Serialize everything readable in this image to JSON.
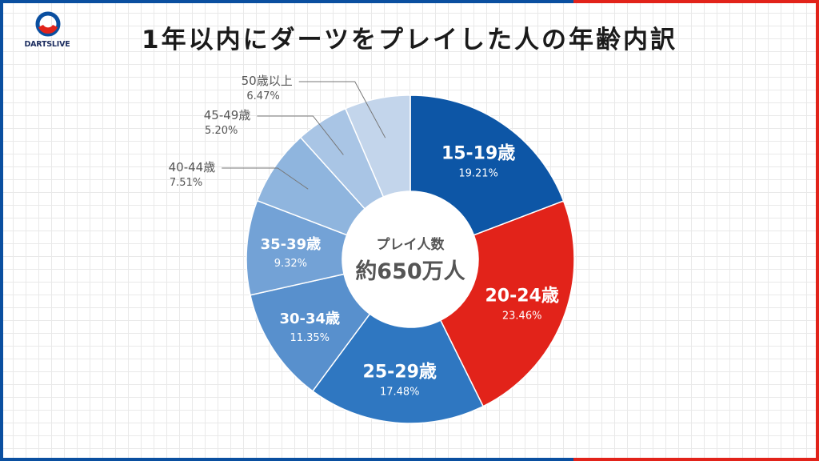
{
  "brand": {
    "name": "DARTSLIVE",
    "blue": "#0a4fa0",
    "red": "#e2231a"
  },
  "title": "1年以内にダーツをプレイした人の年齢内訳",
  "chart_data": {
    "type": "pie",
    "subtype": "donut",
    "title": "1年以内にダーツをプレイした人の年齢内訳",
    "center": {
      "label": "プレイ人数",
      "value": "約650万人"
    },
    "slices": [
      {
        "label": "15-19歳",
        "value": 19.21,
        "value_text": "19.21%",
        "color": "#0d56a6",
        "label_color": "#ffffff",
        "placement": "inside"
      },
      {
        "label": "20-24歳",
        "value": 23.46,
        "value_text": "23.46%",
        "color": "#e2231a",
        "label_color": "#ffffff",
        "placement": "inside"
      },
      {
        "label": "25-29歳",
        "value": 17.48,
        "value_text": "17.48%",
        "color": "#2f77c1",
        "label_color": "#ffffff",
        "placement": "inside"
      },
      {
        "label": "30-34歳",
        "value": 11.35,
        "value_text": "11.35%",
        "color": "#5890cd",
        "label_color": "#ffffff",
        "placement": "inside"
      },
      {
        "label": "35-39歳",
        "value": 9.32,
        "value_text": "9.32%",
        "color": "#73a2d6",
        "label_color": "#ffffff",
        "placement": "inside"
      },
      {
        "label": "40-44歳",
        "value": 7.51,
        "value_text": "7.51%",
        "color": "#8fb5de",
        "label_color": "#555555",
        "placement": "outside"
      },
      {
        "label": "45-49歳",
        "value": 5.2,
        "value_text": "5.20%",
        "color": "#a9c5e5",
        "label_color": "#555555",
        "placement": "outside"
      },
      {
        "label": "50歳以上",
        "value": 6.47,
        "value_text": "6.47%",
        "color": "#c3d5eb",
        "label_color": "#555555",
        "placement": "outside"
      }
    ]
  }
}
